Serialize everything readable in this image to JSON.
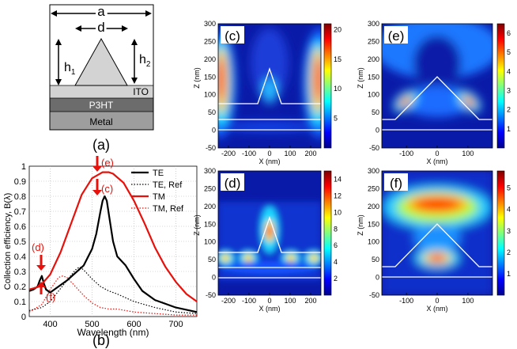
{
  "panel_a": {
    "label": "(a)",
    "dim_a": "a",
    "dim_d": "d",
    "dim_h1": "h",
    "dim_h1_sub": "1",
    "dim_h2": "h",
    "dim_h2_sub": "2",
    "layers": [
      "ITO",
      "P3HT",
      "Metal"
    ]
  },
  "panel_b": {
    "label": "(b)",
    "markers": [
      "(e)",
      "(c)",
      "(d)",
      "(f)"
    ]
  },
  "chart_data": [
    {
      "panel": "(b)",
      "type": "line",
      "xlabel": "Wavelength (nm)",
      "ylabel": "Collection efficiency, B(λ)",
      "xlim": [
        350,
        750
      ],
      "ylim": [
        0,
        1
      ],
      "xticks": [
        400,
        500,
        600,
        700
      ],
      "yticks": [
        0,
        0.1,
        0.2,
        0.3,
        0.4,
        0.5,
        0.6,
        0.7,
        0.8,
        0.9,
        1
      ],
      "grid": true,
      "legend": "top-right",
      "series": [
        {
          "name": "TE",
          "color": "#000000",
          "dash": "solid",
          "x": [
            350,
            360,
            370,
            375,
            380,
            385,
            390,
            400,
            420,
            440,
            460,
            480,
            500,
            510,
            520,
            525,
            530,
            535,
            540,
            550,
            560,
            580,
            600,
            620,
            650,
            700,
            750
          ],
          "y": [
            0.17,
            0.18,
            0.2,
            0.24,
            0.27,
            0.22,
            0.18,
            0.16,
            0.2,
            0.24,
            0.29,
            0.34,
            0.45,
            0.55,
            0.7,
            0.77,
            0.8,
            0.77,
            0.68,
            0.5,
            0.4,
            0.34,
            0.25,
            0.17,
            0.11,
            0.06,
            0.03
          ]
        },
        {
          "name": "TE, Ref",
          "color": "#000000",
          "dash": "dotted",
          "x": [
            350,
            380,
            400,
            420,
            440,
            460,
            470,
            480,
            500,
            520,
            540,
            560,
            600,
            650,
            700,
            750
          ],
          "y": [
            0.04,
            0.06,
            0.1,
            0.17,
            0.24,
            0.31,
            0.33,
            0.31,
            0.25,
            0.2,
            0.17,
            0.15,
            0.1,
            0.06,
            0.03,
            0.02
          ]
        },
        {
          "name": "TM",
          "color": "#e8100a",
          "dash": "solid",
          "x": [
            350,
            375,
            400,
            425,
            450,
            475,
            500,
            525,
            540,
            550,
            575,
            600,
            625,
            650,
            675,
            700,
            725,
            750
          ],
          "y": [
            0.18,
            0.2,
            0.28,
            0.43,
            0.62,
            0.81,
            0.92,
            0.96,
            0.96,
            0.95,
            0.89,
            0.77,
            0.62,
            0.46,
            0.33,
            0.23,
            0.15,
            0.1
          ]
        },
        {
          "name": "TM, Ref",
          "color": "#e8100a",
          "dash": "dotted",
          "x": [
            350,
            380,
            400,
            420,
            430,
            440,
            460,
            480,
            500,
            520,
            540,
            560,
            600,
            650,
            700,
            750
          ],
          "y": [
            0.03,
            0.08,
            0.18,
            0.26,
            0.27,
            0.26,
            0.2,
            0.14,
            0.09,
            0.06,
            0.05,
            0.05,
            0.03,
            0.02,
            0.01,
            0.01
          ]
        }
      ]
    },
    {
      "panel": "(c)",
      "type": "heatmap",
      "xlabel": "X (nm)",
      "ylabel": "Z (nm)",
      "xlim": [
        -250,
        250
      ],
      "ylim": [
        -50,
        300
      ],
      "xticks": [
        -200,
        -100,
        0,
        100,
        200
      ],
      "yticks": [
        -50,
        0,
        50,
        100,
        150,
        200,
        250,
        300
      ],
      "colorbar_ticks": [
        5,
        10,
        15,
        20
      ],
      "colorbar_max": 21
    },
    {
      "panel": "(d)",
      "type": "heatmap",
      "xlabel": "X (nm)",
      "ylabel": "Z (nm)",
      "xlim": [
        -250,
        250
      ],
      "ylim": [
        -50,
        300
      ],
      "xticks": [
        -200,
        -100,
        0,
        100,
        200
      ],
      "yticks": [
        -50,
        0,
        50,
        100,
        150,
        200,
        250,
        300
      ],
      "colorbar_ticks": [
        2,
        4,
        6,
        8,
        10,
        12,
        14
      ],
      "colorbar_max": 15
    },
    {
      "panel": "(e)",
      "type": "heatmap",
      "xlabel": "X (nm)",
      "ylabel": "Z (nm)",
      "xlim": [
        -180,
        180
      ],
      "ylim": [
        -50,
        300
      ],
      "xticks": [
        -100,
        0,
        100
      ],
      "yticks": [
        -50,
        0,
        50,
        100,
        150,
        200,
        250,
        300
      ],
      "colorbar_ticks": [
        1,
        2,
        3,
        4,
        5,
        6
      ],
      "colorbar_max": 6.5
    },
    {
      "panel": "(f)",
      "type": "heatmap",
      "xlabel": "X (nm)",
      "ylabel": "Z (nm)",
      "xlim": [
        -180,
        180
      ],
      "ylim": [
        -50,
        300
      ],
      "xticks": [
        -100,
        0,
        100
      ],
      "yticks": [
        -50,
        0,
        50,
        100,
        150,
        200,
        250,
        300
      ],
      "colorbar_ticks": [
        1,
        2,
        3,
        4,
        5
      ],
      "colorbar_max": 5.8
    }
  ]
}
